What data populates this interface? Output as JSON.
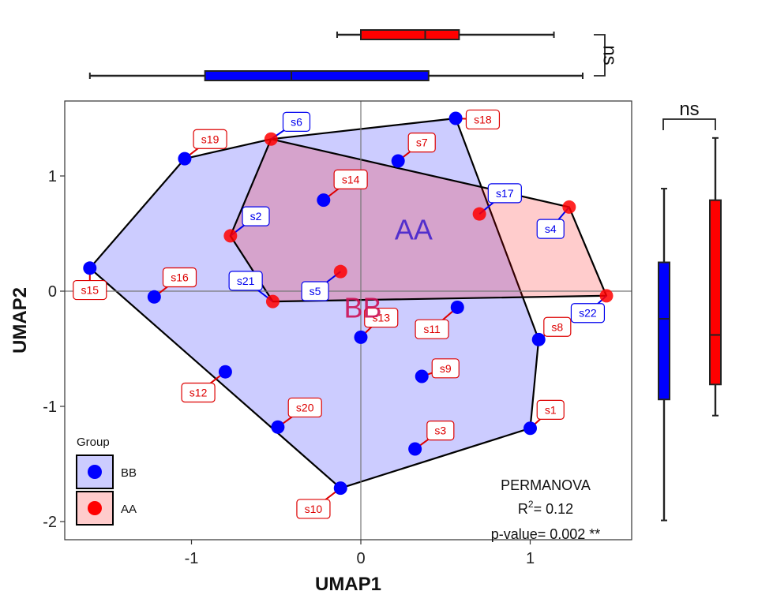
{
  "chart_data": {
    "type": "scatter",
    "xlabel": "UMAP1",
    "ylabel": "UMAP2",
    "xlim": [
      -1.75,
      1.6
    ],
    "ylim": [
      -2.15,
      1.65
    ],
    "xticks": [
      -1,
      0,
      1
    ],
    "yticks": [
      -2,
      -1,
      0,
      1
    ],
    "legend": {
      "title": "Group",
      "position": "bottom-left"
    },
    "series": [
      {
        "name": "BB",
        "color": "#0000ff",
        "fill": "#ccccff",
        "points": [
          {
            "label": "s2",
            "x": -0.77,
            "y": 0.48
          },
          {
            "label": "s4",
            "x": 1.23,
            "y": 0.73
          },
          {
            "label": "s5",
            "x": -0.12,
            "y": 0.17
          },
          {
            "label": "s6",
            "x": -0.53,
            "y": 1.32
          },
          {
            "label": "s17",
            "x": 0.7,
            "y": 0.67
          },
          {
            "label": "s21",
            "x": -0.52,
            "y": -0.09
          },
          {
            "label": "s22",
            "x": 1.45,
            "y": -0.04
          },
          {
            "label": "s15",
            "x": -1.6,
            "y": 0.2
          },
          {
            "label": "s16",
            "x": -1.22,
            "y": -0.05
          },
          {
            "label": "s19",
            "x": -1.04,
            "y": 1.15
          },
          {
            "label": "s7",
            "x": 0.22,
            "y": 1.13
          },
          {
            "label": "s18",
            "x": 0.56,
            "y": 1.5
          },
          {
            "label": "s14",
            "x": -0.22,
            "y": 0.79
          },
          {
            "label": "s11",
            "x": 0.57,
            "y": -0.14
          },
          {
            "label": "s13",
            "x": 0.0,
            "y": -0.4
          },
          {
            "label": "s8",
            "x": 1.05,
            "y": -0.42
          },
          {
            "label": "s9",
            "x": 0.36,
            "y": -0.74
          },
          {
            "label": "s12",
            "x": -0.8,
            "y": -0.7
          },
          {
            "label": "s20",
            "x": -0.49,
            "y": -1.18
          },
          {
            "label": "s1",
            "x": 1.0,
            "y": -1.19
          },
          {
            "label": "s3",
            "x": 0.32,
            "y": -1.37
          },
          {
            "label": "s10",
            "x": -0.12,
            "y": -1.71
          }
        ]
      },
      {
        "name": "AA",
        "color": "#ff0000",
        "fill": "#ffcccc",
        "points": [
          {
            "label": "s2",
            "x": -0.77,
            "y": 0.48
          },
          {
            "label": "s6",
            "x": -0.53,
            "y": 1.32
          },
          {
            "label": "s5",
            "x": -0.12,
            "y": 0.17
          },
          {
            "label": "s17",
            "x": 0.7,
            "y": 0.67
          },
          {
            "label": "s4",
            "x": 1.23,
            "y": 0.73
          },
          {
            "label": "s22",
            "x": 1.45,
            "y": -0.04
          },
          {
            "label": "s21",
            "x": -0.52,
            "y": -0.09
          }
        ]
      }
    ],
    "hull_bb": [
      [
        -1.6,
        0.2
      ],
      [
        -1.04,
        1.15
      ],
      [
        -0.53,
        1.32
      ],
      [
        0.56,
        1.5
      ],
      [
        1.05,
        -0.42
      ],
      [
        1.0,
        -1.19
      ],
      [
        -0.12,
        -1.71
      ]
    ],
    "hull_aa": [
      [
        -0.77,
        0.48
      ],
      [
        -0.53,
        1.32
      ],
      [
        1.23,
        0.73
      ],
      [
        1.45,
        -0.04
      ],
      [
        -0.52,
        -0.09
      ]
    ],
    "points": [
      {
        "label": "s1",
        "x": 1.0,
        "y": -1.19,
        "group": "BB",
        "lx": 1.12,
        "ly": -1.03,
        "lcolor": "#dd0000"
      },
      {
        "label": "s2",
        "x": -0.77,
        "y": 0.48,
        "group": "AA",
        "lx": -0.62,
        "ly": 0.65,
        "lcolor": "#0000ee"
      },
      {
        "label": "s3",
        "x": 0.32,
        "y": -1.37,
        "group": "BB",
        "lx": 0.47,
        "ly": -1.21,
        "lcolor": "#dd0000"
      },
      {
        "label": "s4",
        "x": 1.23,
        "y": 0.73,
        "group": "AA",
        "lx": 1.12,
        "ly": 0.54,
        "lcolor": "#0000ee"
      },
      {
        "label": "s5",
        "x": -0.12,
        "y": 0.17,
        "group": "AA",
        "lx": -0.27,
        "ly": 0.0,
        "lcolor": "#0000ee"
      },
      {
        "label": "s6",
        "x": -0.53,
        "y": 1.32,
        "group": "AA",
        "lx": -0.38,
        "ly": 1.47,
        "lcolor": "#0000ee"
      },
      {
        "label": "s7",
        "x": 0.22,
        "y": 1.13,
        "group": "BB",
        "lx": 0.36,
        "ly": 1.29,
        "lcolor": "#dd0000"
      },
      {
        "label": "s8",
        "x": 1.05,
        "y": -0.42,
        "group": "BB",
        "lx": 1.16,
        "ly": -0.31,
        "lcolor": "#dd0000"
      },
      {
        "label": "s9",
        "x": 0.36,
        "y": -0.74,
        "group": "BB",
        "lx": 0.5,
        "ly": -0.67,
        "lcolor": "#dd0000"
      },
      {
        "label": "s10",
        "x": -0.12,
        "y": -1.71,
        "group": "BB",
        "lx": -0.28,
        "ly": -1.89,
        "lcolor": "#dd0000"
      },
      {
        "label": "s11",
        "x": 0.57,
        "y": -0.14,
        "group": "BB",
        "lx": 0.42,
        "ly": -0.33,
        "lcolor": "#dd0000"
      },
      {
        "label": "s12",
        "x": -0.8,
        "y": -0.7,
        "group": "BB",
        "lx": -0.96,
        "ly": -0.88,
        "lcolor": "#dd0000"
      },
      {
        "label": "s13",
        "x": 0.0,
        "y": -0.4,
        "group": "BB",
        "lx": 0.12,
        "ly": -0.23,
        "lcolor": "#dd0000"
      },
      {
        "label": "s14",
        "x": -0.22,
        "y": 0.79,
        "group": "BB",
        "lx": -0.06,
        "ly": 0.97,
        "lcolor": "#dd0000"
      },
      {
        "label": "s15",
        "x": -1.6,
        "y": 0.2,
        "group": "BB",
        "lx": -1.6,
        "ly": 0.01,
        "lcolor": "#dd0000"
      },
      {
        "label": "s16",
        "x": -1.22,
        "y": -0.05,
        "group": "BB",
        "lx": -1.07,
        "ly": 0.12,
        "lcolor": "#dd0000"
      },
      {
        "label": "s17",
        "x": 0.7,
        "y": 0.67,
        "group": "AA",
        "lx": 0.85,
        "ly": 0.85,
        "lcolor": "#0000ee"
      },
      {
        "label": "s18",
        "x": 0.56,
        "y": 1.5,
        "group": "BB",
        "lx": 0.72,
        "ly": 1.49,
        "lcolor": "#dd0000"
      },
      {
        "label": "s19",
        "x": -1.04,
        "y": 1.15,
        "group": "BB",
        "lx": -0.89,
        "ly": 1.32,
        "lcolor": "#dd0000"
      },
      {
        "label": "s20",
        "x": -0.49,
        "y": -1.18,
        "group": "BB",
        "lx": -0.33,
        "ly": -1.01,
        "lcolor": "#dd0000"
      },
      {
        "label": "s21",
        "x": -0.52,
        "y": -0.09,
        "group": "AA",
        "lx": -0.68,
        "ly": 0.09,
        "lcolor": "#0000ee"
      },
      {
        "label": "s22",
        "x": 1.45,
        "y": -0.04,
        "group": "AA",
        "lx": 1.34,
        "ly": -0.19,
        "lcolor": "#0000ee"
      }
    ],
    "group_labels": [
      {
        "text": "AA",
        "x": 0.2,
        "y": 0.45,
        "color": "#4422cc"
      },
      {
        "text": "BB",
        "x": -0.1,
        "y": -0.23,
        "color": "#cc1155"
      }
    ],
    "annotation": {
      "title": "PERMANOVA",
      "r2_prefix": "R",
      "r2_sup": "2",
      "r2_value": "= 0.12",
      "pvalue": "p-value= 0.002 **"
    },
    "top_boxplot": {
      "axis": "UMAP1",
      "significance": "ns",
      "boxes": [
        {
          "group": "AA",
          "color": "#ff0000",
          "min": -0.14,
          "q1": 0.0,
          "median": 0.38,
          "q3": 0.58,
          "max": 1.14
        },
        {
          "group": "BB",
          "color": "#0000ff",
          "min": -1.6,
          "q1": -0.92,
          "median": -0.41,
          "q3": 0.4,
          "max": 1.31
        }
      ]
    },
    "right_boxplot": {
      "axis": "UMAP2",
      "significance": "ns",
      "boxes": [
        {
          "group": "BB",
          "color": "#0000ff",
          "min": -1.99,
          "q1": -0.94,
          "median": -0.24,
          "q3": 0.25,
          "max": 0.89
        },
        {
          "group": "AA",
          "color": "#ff0000",
          "min": -1.08,
          "q1": -0.81,
          "median": -0.38,
          "q3": 0.79,
          "max": 1.33
        }
      ]
    }
  }
}
